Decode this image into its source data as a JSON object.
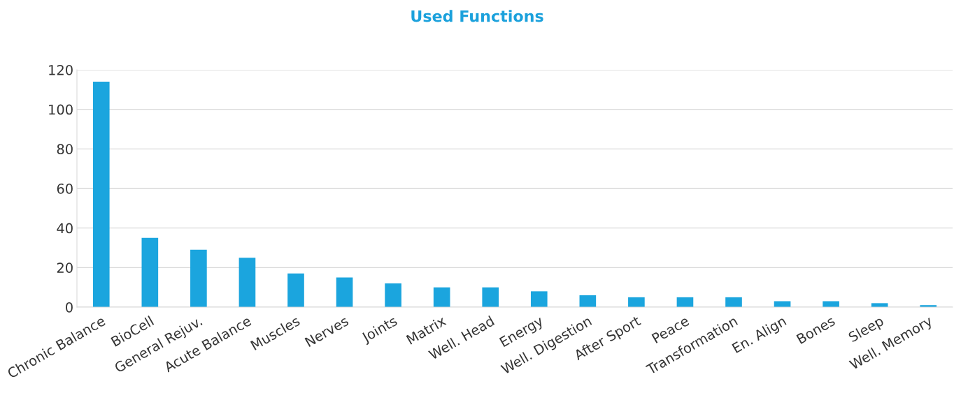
{
  "chart_data": {
    "type": "bar",
    "title": "Used Functions",
    "categories": [
      "Chronic Balance",
      "BioCell",
      "General Rejuv.",
      "Acute Balance",
      "Muscles",
      "Nerves",
      "Joints",
      "Matrix",
      "Well. Head",
      "Energy",
      "Well. Digestion",
      "After Sport",
      "Peace",
      "Transformation",
      "En. Align",
      "Bones",
      "Sleep",
      "Well. Memory"
    ],
    "values": [
      114,
      35,
      29,
      25,
      17,
      15,
      12,
      10,
      10,
      8,
      6,
      5,
      5,
      5,
      3,
      3,
      2,
      1
    ],
    "color": "#1ba5de",
    "ylim": [
      0,
      120
    ],
    "yticks": [
      0,
      20,
      40,
      60,
      80,
      100,
      120
    ],
    "grid": "y",
    "legend": false
  }
}
